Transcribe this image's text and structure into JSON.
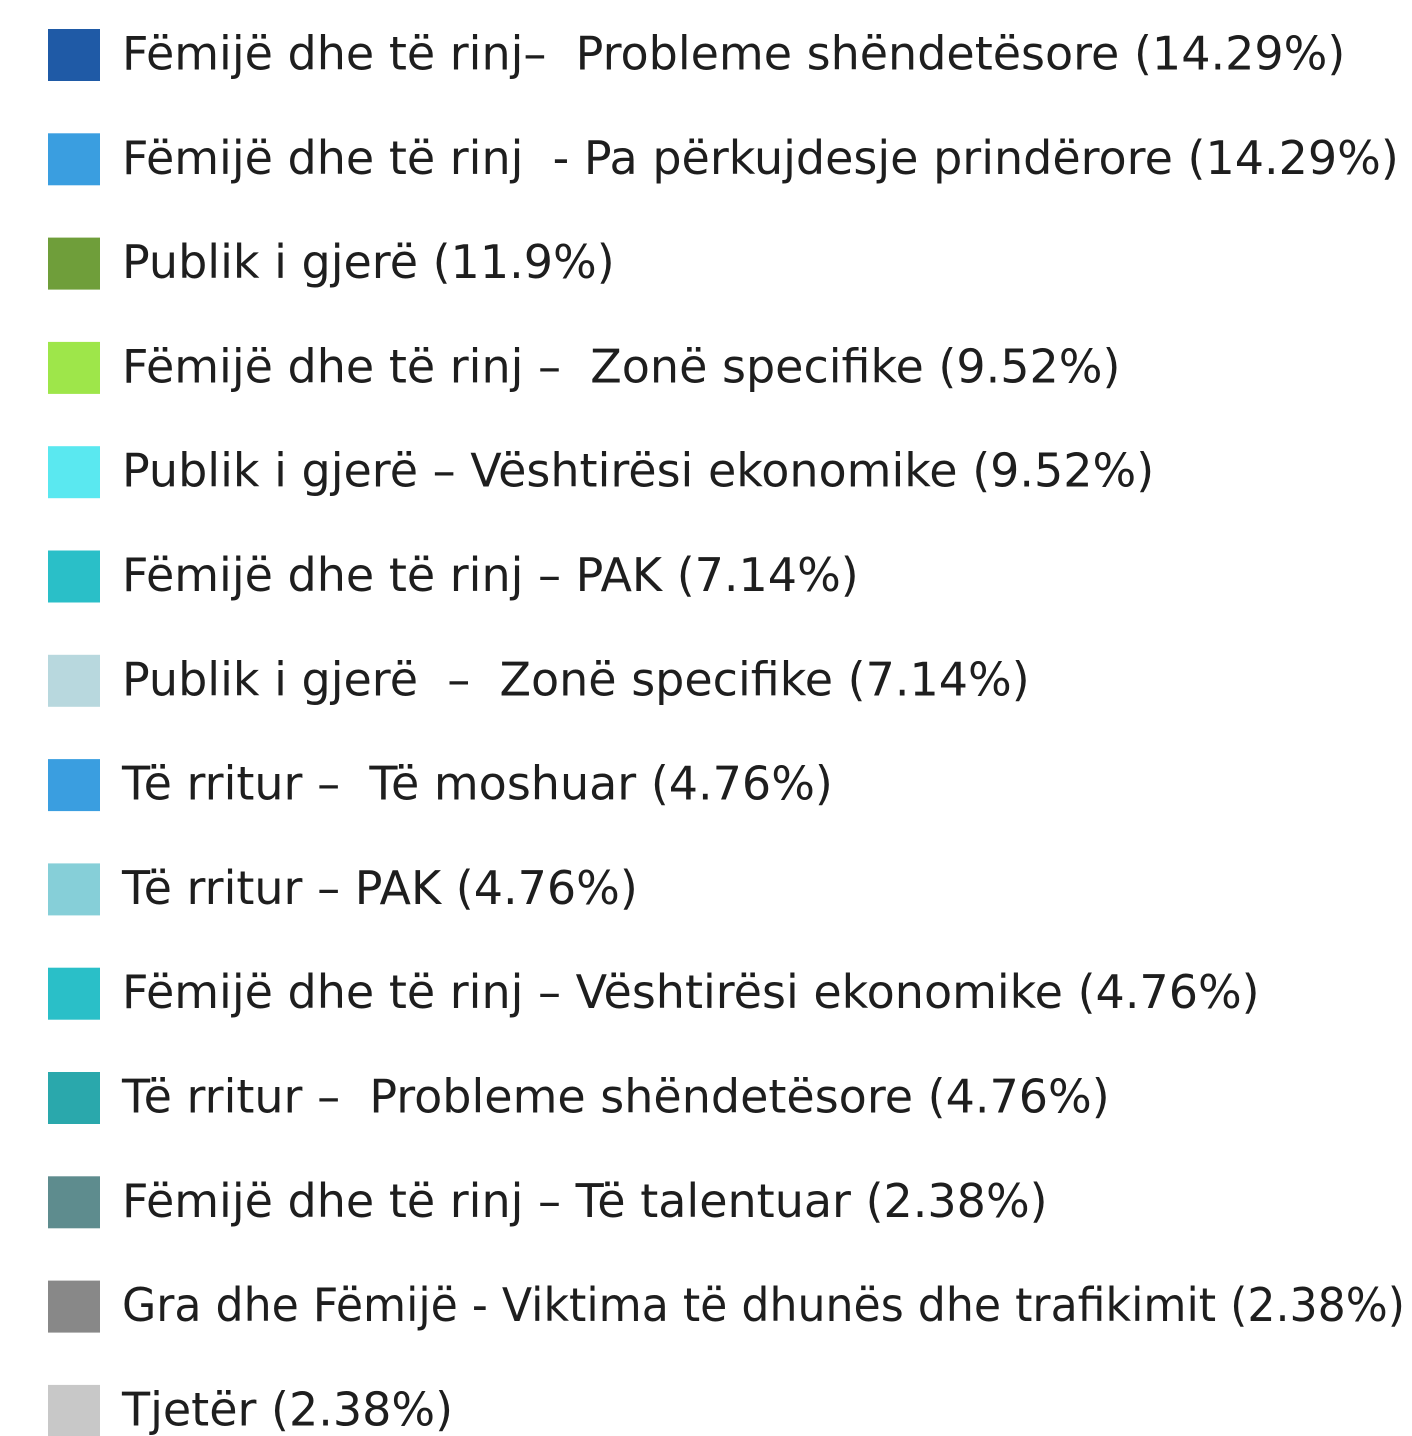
{
  "legend": {
    "items": [
      {
        "label": "Fëmijë dhe të rinj–  Probleme shëndetësore (14.29%)",
        "color": "#1f5aa6"
      },
      {
        "label": "Fëmijë dhe të rinj  - Pa përkujdesje prindërore (14.29%)",
        "color": "#3a9ee0"
      },
      {
        "label": "Publik i gjerë (11.9%)",
        "color": "#6f9e3a"
      },
      {
        "label": "Fëmijë dhe të rinj –  Zonë specifike (9.52%)",
        "color": "#9ee64a"
      },
      {
        "label": "Publik i gjerë – Vështirësi ekonomike (9.52%)",
        "color": "#5ae8f0"
      },
      {
        "label": "Fëmijë dhe të rinj – PAK (7.14%)",
        "color": "#2abfc8"
      },
      {
        "label": "Publik i gjerë  –  Zonë specifike (7.14%)",
        "color": "#b8d8de"
      },
      {
        "label": "Të rritur –  Të moshuar (4.76%)",
        "color": "#3a9ee0"
      },
      {
        "label": "Të rritur – PAK (4.76%)",
        "color": "#86cfd8"
      },
      {
        "label": "Fëmijë dhe të rinj – Vështirësi ekonomike (4.76%)",
        "color": "#2abfc8"
      },
      {
        "label": "Të rritur –  Probleme shëndetësore (4.76%)",
        "color": "#2aa8ac"
      },
      {
        "label": "Fëmijë dhe të rinj – Të talentuar (2.38%)",
        "color": "#5e8c8e"
      },
      {
        "label": "Gra dhe Fëmijë - Viktima të dhunës dhe trafikimit (2.38%)",
        "color": "#888888"
      },
      {
        "label": "Tjetër (2.38%)",
        "color": "#c8c8c8"
      }
    ]
  }
}
